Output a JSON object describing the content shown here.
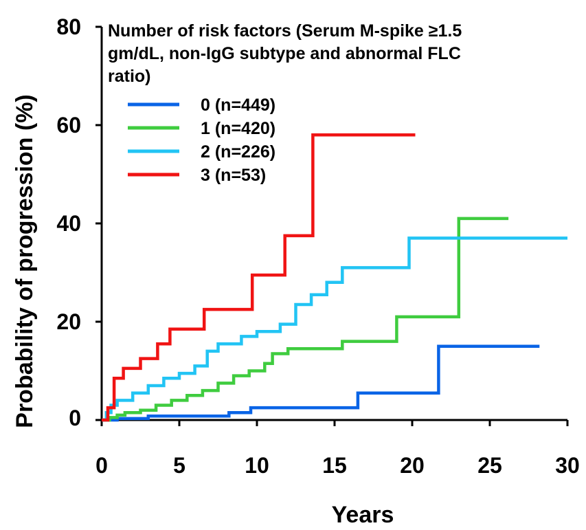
{
  "chart_data": {
    "type": "line",
    "step": true,
    "title": "",
    "xlabel": "Years",
    "ylabel": "Probability of progression (%)",
    "xlim": [
      0,
      30
    ],
    "ylim": [
      0,
      80
    ],
    "xticks": [
      0,
      5,
      10,
      15,
      20,
      25,
      30
    ],
    "yticks": [
      0,
      20,
      40,
      60,
      80
    ],
    "grid": false,
    "legend": {
      "position": "top-left",
      "title_lines": [
        "Number of risk factors (Serum M-spike ≥1.5",
        "gm/dL, non-IgG subtype and abnormal FLC",
        "ratio)"
      ]
    },
    "series": [
      {
        "name": "0  (n=449)",
        "color": "#0a64e6",
        "x": [
          0,
          1.0,
          3.0,
          8.2,
          9.6,
          16.5,
          21.7,
          28.2
        ],
        "y": [
          0,
          0.3,
          0.8,
          1.5,
          2.5,
          5.5,
          15.0,
          15.0
        ]
      },
      {
        "name": "1  (n=420)",
        "color": "#3fcc3f",
        "x": [
          0,
          0.5,
          1.0,
          1.5,
          2.5,
          3.5,
          4.5,
          5.5,
          6.5,
          7.5,
          8.5,
          9.5,
          10.5,
          11.0,
          12.0,
          15.5,
          19.0,
          23.0,
          26.2
        ],
        "y": [
          0,
          0.5,
          1.0,
          1.5,
          2.0,
          3.0,
          4.0,
          5.0,
          6.0,
          7.5,
          9.0,
          10.0,
          11.5,
          13.5,
          14.5,
          16.0,
          21.0,
          41.0,
          41.0
        ]
      },
      {
        "name": "2  (n=226)",
        "color": "#22c4f4",
        "x": [
          0,
          0.3,
          0.6,
          1.0,
          2.0,
          3.0,
          4.0,
          5.0,
          6.0,
          6.8,
          7.5,
          9.0,
          10.0,
          11.5,
          12.5,
          13.5,
          14.5,
          15.5,
          19.8,
          30.0
        ],
        "y": [
          0,
          1.5,
          3.0,
          4.0,
          5.5,
          7.0,
          8.5,
          9.5,
          11.0,
          14.0,
          15.5,
          17.0,
          18.0,
          19.5,
          23.5,
          25.5,
          28.0,
          31.0,
          37.0,
          37.0
        ]
      },
      {
        "name": "3  (n=53)",
        "color": "#f01414",
        "x": [
          0,
          0.4,
          0.8,
          1.4,
          2.5,
          3.6,
          4.4,
          6.6,
          9.7,
          11.8,
          13.6,
          20.2
        ],
        "y": [
          0,
          2.5,
          8.5,
          10.5,
          12.5,
          15.5,
          18.5,
          22.5,
          29.5,
          37.5,
          58.0,
          58.0
        ]
      }
    ]
  }
}
